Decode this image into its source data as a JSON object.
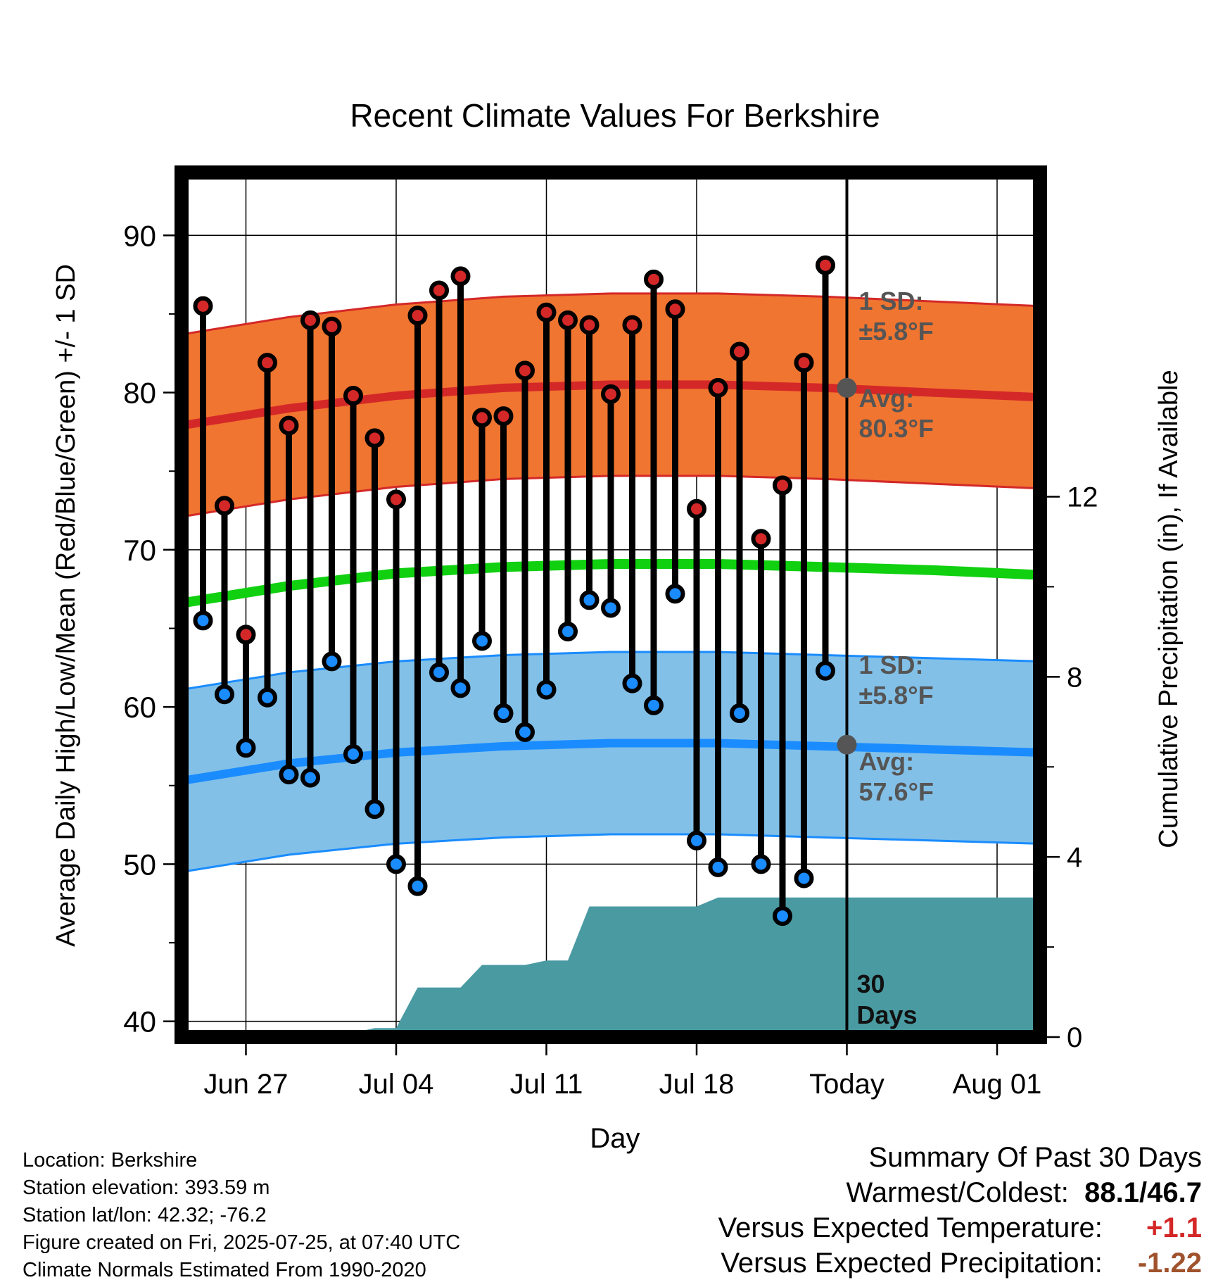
{
  "chart_data": {
    "type": "line",
    "title": "Recent Climate Values For Berkshire",
    "xlabel": "Day",
    "ylabel": "Average Daily High/Low/Mean (Red/Blue/Green) +/- 1 SD",
    "y2label": "Cumulative Precipitation (in), If Available",
    "x_ticks": [
      "Jun 27",
      "Jul 04",
      "Jul 11",
      "Jul 18",
      "Today",
      "Aug 01"
    ],
    "x_tick_days": [
      3,
      10,
      17,
      24,
      31,
      38
    ],
    "xlim": [
      0,
      40
    ],
    "ylim": [
      39,
      94
    ],
    "y_ticks": [
      40,
      50,
      60,
      70,
      80,
      90
    ],
    "y2lim": [
      0,
      19.2
    ],
    "y2_ticks": [
      0,
      4,
      8,
      12
    ],
    "today_day": 31,
    "days": [
      1,
      2,
      3,
      4,
      5,
      6,
      7,
      8,
      9,
      10,
      11,
      12,
      13,
      14,
      15,
      16,
      17,
      18,
      19,
      20,
      21,
      22,
      23,
      24,
      25,
      26,
      27,
      28,
      29,
      30
    ],
    "highs": [
      85.5,
      72.8,
      64.6,
      81.9,
      77.9,
      84.6,
      84.2,
      79.8,
      77.1,
      73.2,
      84.9,
      86.5,
      87.4,
      78.4,
      78.5,
      81.4,
      85.1,
      84.6,
      84.3,
      79.9,
      84.3,
      87.2,
      85.3,
      72.6,
      80.3,
      82.6,
      70.7,
      74.1,
      81.9,
      88.1
    ],
    "lows": [
      65.5,
      60.8,
      57.4,
      60.6,
      55.7,
      55.5,
      62.9,
      57.0,
      53.5,
      50.0,
      48.6,
      62.2,
      61.2,
      64.2,
      59.6,
      58.4,
      61.1,
      64.8,
      66.8,
      66.3,
      61.5,
      60.1,
      67.2,
      51.5,
      49.8,
      59.6,
      50.0,
      46.7,
      49.1,
      62.3
    ],
    "normal_high": {
      "x": [
        0,
        5,
        10,
        15,
        20,
        25,
        30,
        35,
        40
      ],
      "mean": [
        77.9,
        79.0,
        79.8,
        80.3,
        80.5,
        80.5,
        80.3,
        80.0,
        79.7
      ],
      "sd": 5.8
    },
    "normal_low": {
      "x": [
        0,
        5,
        10,
        15,
        20,
        25,
        30,
        35,
        40
      ],
      "mean": [
        55.3,
        56.4,
        57.1,
        57.5,
        57.7,
        57.7,
        57.5,
        57.3,
        57.1
      ],
      "sd": 5.8
    },
    "normal_mean": {
      "x": [
        0,
        5,
        10,
        15,
        20,
        25,
        30,
        35,
        40
      ],
      "mean": [
        66.6,
        67.7,
        68.5,
        68.9,
        69.1,
        69.1,
        68.9,
        68.7,
        68.4
      ]
    },
    "precip_cumulative": {
      "x": [
        0,
        6,
        7,
        8,
        9,
        10,
        11,
        12,
        13,
        14,
        15,
        16,
        17,
        18,
        19,
        20,
        21,
        22,
        23,
        24,
        25,
        26,
        27,
        28,
        29,
        30,
        31,
        40
      ],
      "y": [
        0,
        0,
        0.1,
        0.1,
        0.2,
        0.2,
        1.1,
        1.1,
        1.1,
        1.6,
        1.6,
        1.6,
        1.7,
        1.7,
        2.9,
        2.9,
        2.9,
        2.9,
        2.9,
        2.9,
        3.1,
        3.1,
        3.1,
        3.1,
        3.1,
        3.1,
        3.1,
        3.1
      ]
    },
    "annotations": {
      "high_sd_label": "1 SD:",
      "high_sd_value": "±5.8°F",
      "high_avg_label": "Avg:",
      "high_avg_value": "80.3°F",
      "low_sd_label": "1 SD:",
      "low_sd_value": "±5.8°F",
      "low_avg_label": "Avg:",
      "low_avg_value": "57.6°F",
      "high_avg_today": 80.3,
      "low_avg_today": 57.6,
      "precip_label_line1": "30",
      "precip_label_line2": "Days"
    },
    "colors": {
      "high_band": "#f07530",
      "high_line": "#d42828",
      "low_band": "#82c0e8",
      "low_line": "#1a8cff",
      "mean_line": "#10d010",
      "precip": "#4a9aa2",
      "high_dot": "#d42828",
      "low_dot": "#1a8cff",
      "annotation": "#555555"
    }
  },
  "info": {
    "location": "Location: Berkshire",
    "elevation": "Station elevation: 393.59 m",
    "latlon": "Station lat/lon: 42.32; -76.2",
    "created": "Figure created on Fri, 2025-07-25, at 07:40 UTC",
    "normals": "Climate Normals Estimated From 1990-2020"
  },
  "summary": {
    "title": "Summary Of Past 30 Days",
    "warm_cold_label": "Warmest/Coldest:",
    "warm_value": "88.1",
    "sep": "/",
    "cold_value": "46.7",
    "temp_label": "Versus Expected Temperature:",
    "temp_value": "+1.1",
    "precip_label": "Versus Expected Precipitation:",
    "precip_value": "-1.22",
    "temp_color": "#d42828",
    "precip_color": "#a0522d"
  }
}
